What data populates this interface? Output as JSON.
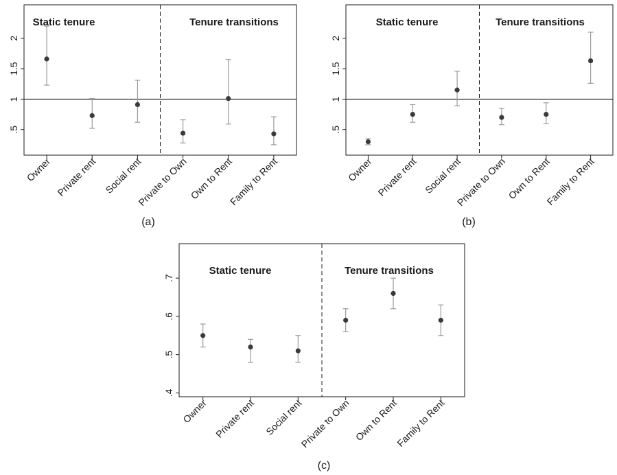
{
  "colors": {
    "frame": "#1a1a1a",
    "ci": "#9a9a9a",
    "point": "#3a3a3a",
    "reference": "#1a1a1a"
  },
  "chart_data": [
    {
      "type": "scatter",
      "panel_label": "(a)",
      "categories": [
        "Owner",
        "Private rent",
        "Social rent",
        "Private to Own",
        "Own to Rent",
        "Family to Rent"
      ],
      "group_labels": [
        "Static tenure",
        "Tenure transitions"
      ],
      "estimates": [
        1.66,
        0.73,
        0.91,
        0.44,
        1.01,
        0.43
      ],
      "ci_low": [
        1.23,
        0.52,
        0.62,
        0.28,
        0.59,
        0.25
      ],
      "ci_high": [
        2.2,
        1.01,
        1.31,
        0.66,
        1.65,
        0.71
      ],
      "yticks": [
        0.5,
        1,
        1.5,
        2
      ],
      "ytick_labels": [
        ".5",
        "1",
        "1.5",
        "2"
      ],
      "ylim": [
        0.08,
        2.55
      ],
      "reference_line": 1,
      "divider_after_index": 2
    },
    {
      "type": "scatter",
      "panel_label": "(b)",
      "categories": [
        "Owner",
        "Private rent",
        "Social rent",
        "Private to Own",
        "Own to Rent",
        "Family to Rent"
      ],
      "group_labels": [
        "Static tenure",
        "Tenure transitions"
      ],
      "estimates": [
        0.3,
        0.75,
        1.15,
        0.7,
        0.75,
        1.63
      ],
      "ci_low": [
        0.25,
        0.62,
        0.89,
        0.58,
        0.6,
        1.26
      ],
      "ci_high": [
        0.35,
        0.91,
        1.46,
        0.85,
        0.94,
        2.1
      ],
      "yticks": [
        0.5,
        1,
        1.5,
        2
      ],
      "ytick_labels": [
        ".5",
        "1",
        "1.5",
        "2"
      ],
      "ylim": [
        0.08,
        2.55
      ],
      "reference_line": 1,
      "divider_after_index": 2
    },
    {
      "type": "scatter",
      "panel_label": "(c)",
      "categories": [
        "Owner",
        "Private rent",
        "Social rent",
        "Private to Own",
        "Own to Rent",
        "Family to Rent"
      ],
      "group_labels": [
        "Static tenure",
        "Tenure transitions"
      ],
      "estimates": [
        0.55,
        0.52,
        0.51,
        0.59,
        0.66,
        0.59
      ],
      "ci_low": [
        0.52,
        0.48,
        0.48,
        0.56,
        0.62,
        0.55
      ],
      "ci_high": [
        0.58,
        0.54,
        0.55,
        0.62,
        0.7,
        0.63
      ],
      "yticks": [
        0.4,
        0.5,
        0.6,
        0.7
      ],
      "ytick_labels": [
        ".4",
        ".5",
        ".6",
        ".7"
      ],
      "ylim": [
        0.39,
        0.79
      ],
      "reference_line": null,
      "divider_after_index": 2
    }
  ]
}
